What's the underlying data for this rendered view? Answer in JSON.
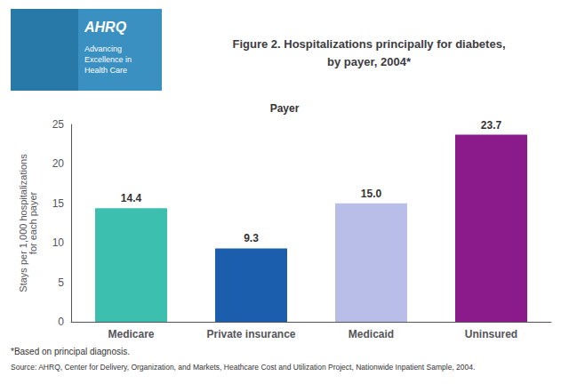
{
  "chart_data": {
    "type": "bar",
    "title": "Figure 2. Hospitalizations principally for diabetes,\nby payer, 2004*",
    "categories": [
      "Medicare",
      "Private insurance",
      "Medicaid",
      "Uninsured"
    ],
    "values": [
      14.4,
      9.3,
      15.0,
      23.7
    ],
    "value_labels": [
      "14.4",
      "9.3",
      "15.0",
      "23.7"
    ],
    "data_labels": true,
    "colors": [
      "#3DBFB0",
      "#1A5EAD",
      "#B8BEE8",
      "#8B1A8B"
    ],
    "ylabel": "Stays per 1,000 hospitalizations\nfor each payer",
    "ylim": [
      0,
      25
    ],
    "yticks": [
      0,
      5,
      10,
      15,
      20,
      25
    ],
    "grid": false,
    "annotations": [
      "Payer",
      "*Based on principal diagnosis.",
      "Source: AHRQ, Center for Delivery, Organization, and Markets, Heathcare Cost and Utilization Project, Nationwide Inpatient Sample, 2004.",
      "AHRQ",
      "Advancing",
      "Excellence in",
      "Health Care"
    ]
  }
}
